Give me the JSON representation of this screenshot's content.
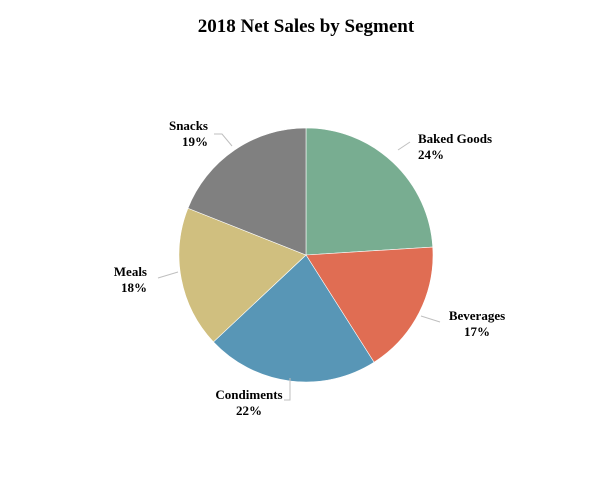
{
  "chart_data": {
    "type": "pie",
    "title": "2018 Net Sales by Segment",
    "slices": [
      {
        "label": "Baked Goods",
        "value": 24,
        "display": "24%",
        "color": "#78ad91"
      },
      {
        "label": "Beverages",
        "value": 17,
        "display": "17%",
        "color": "#e06d53"
      },
      {
        "label": "Condiments",
        "value": 22,
        "display": "22%",
        "color": "#5896b6"
      },
      {
        "label": "Meals",
        "value": 18,
        "display": "18%",
        "color": "#d0bf7f"
      },
      {
        "label": "Snacks",
        "value": 19,
        "display": "19%",
        "color": "#808080"
      }
    ],
    "legend": "none",
    "data_labels": "outside"
  }
}
